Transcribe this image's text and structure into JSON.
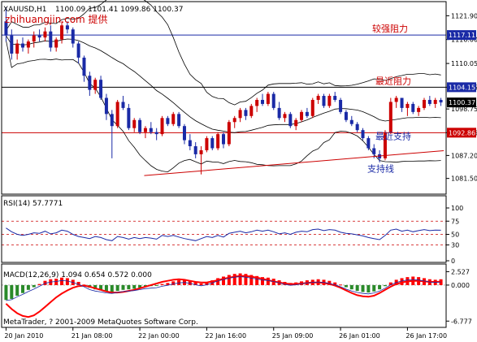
{
  "chart_data": [
    {
      "type": "candlestick",
      "symbol_label": "XAUUSD,H1",
      "ohlc_readout": "1100.09 1101.41 1099.86 1100.37",
      "watermark": "zhihuangjin.com 提供",
      "ylim": [
        1078,
        1125
      ],
      "y_ticks": [
        1121.9,
        1116.0,
        1110.05,
        1104.15,
        1098.75,
        1092.86,
        1087.2,
        1081.5
      ],
      "y_tick_labels": [
        "1121.90",
        "1116.00",
        "1110.05",
        "1104.15",
        "1098.75",
        "1092.86",
        "1087.20",
        "1081.50"
      ],
      "price_tags": [
        {
          "value": 1117.11,
          "label": "1117.11",
          "color": "#1a2aa6",
          "line_color": "#1a2aa6"
        },
        {
          "value": 1104.15,
          "label": "1104.15",
          "color": "#1a2aa6",
          "line_color": "#000000"
        },
        {
          "value": 1100.37,
          "label": "1100.37",
          "color": "#000000",
          "line_color": ""
        },
        {
          "value": 1092.86,
          "label": "1092.86",
          "color": "#cc0000",
          "line_color": "#cc0000"
        }
      ],
      "annotations": [
        {
          "text": "较强阻力",
          "value": 1117.11,
          "color": "#cc0000"
        },
        {
          "text": "最近阻力",
          "value": 1104.15,
          "color": "#cc0000"
        },
        {
          "text": "最近支持",
          "value": 1092.86,
          "color": "#1a2aa6"
        },
        {
          "text": "支持线",
          "value": 1087.0,
          "color": "#1a2aa6"
        }
      ],
      "trendline": {
        "from": [
          0.32,
          1082.2
        ],
        "to": [
          1.0,
          1088.4
        ],
        "color": "#cc0000"
      },
      "up_color": "#cc0000",
      "down_color": "#1a2aa6",
      "candles": [
        [
          1120.5,
          1124.0,
          1115.5,
          1117.0
        ],
        [
          1117.0,
          1118.5,
          1111.0,
          1112.5
        ],
        [
          1112.5,
          1116.0,
          1111.0,
          1115.0
        ],
        [
          1115.0,
          1116.5,
          1113.0,
          1114.0
        ],
        [
          1114.0,
          1116.0,
          1112.5,
          1115.5
        ],
        [
          1115.5,
          1118.0,
          1114.0,
          1117.0
        ],
        [
          1117.0,
          1118.5,
          1115.5,
          1116.5
        ],
        [
          1116.5,
          1119.0,
          1115.5,
          1118.0
        ],
        [
          1118.0,
          1119.5,
          1113.0,
          1114.0
        ],
        [
          1114.0,
          1116.5,
          1113.0,
          1116.0
        ],
        [
          1116.0,
          1120.5,
          1115.0,
          1119.5
        ],
        [
          1119.5,
          1120.5,
          1117.5,
          1118.5
        ],
        [
          1118.5,
          1119.0,
          1114.0,
          1115.0
        ],
        [
          1115.0,
          1115.5,
          1110.0,
          1111.5
        ],
        [
          1111.5,
          1112.0,
          1105.5,
          1107.0
        ],
        [
          1107.0,
          1108.0,
          1102.0,
          1103.5
        ],
        [
          1103.5,
          1106.5,
          1102.5,
          1106.0
        ],
        [
          1106.0,
          1107.0,
          1101.0,
          1101.5
        ],
        [
          1101.5,
          1102.5,
          1096.0,
          1097.5
        ],
        [
          1097.5,
          1098.5,
          1086.5,
          1094.5
        ],
        [
          1094.5,
          1101.0,
          1094.0,
          1100.5
        ],
        [
          1100.5,
          1102.0,
          1098.5,
          1099.0
        ],
        [
          1099.0,
          1100.0,
          1093.5,
          1094.0
        ],
        [
          1094.0,
          1096.5,
          1093.0,
          1096.0
        ],
        [
          1096.0,
          1096.5,
          1092.5,
          1093.0
        ],
        [
          1093.0,
          1094.5,
          1091.5,
          1094.0
        ],
        [
          1094.0,
          1095.5,
          1092.5,
          1093.0
        ],
        [
          1093.0,
          1094.0,
          1091.0,
          1092.5
        ],
        [
          1092.5,
          1097.0,
          1092.0,
          1096.5
        ],
        [
          1096.5,
          1097.0,
          1094.5,
          1095.0
        ],
        [
          1095.0,
          1098.0,
          1094.5,
          1097.5
        ],
        [
          1097.5,
          1098.0,
          1094.0,
          1094.5
        ],
        [
          1094.5,
          1095.0,
          1090.0,
          1091.0
        ],
        [
          1091.0,
          1092.5,
          1088.5,
          1089.5
        ],
        [
          1089.5,
          1090.5,
          1086.5,
          1087.5
        ],
        [
          1087.5,
          1089.5,
          1082.5,
          1088.5
        ],
        [
          1088.5,
          1092.0,
          1088.0,
          1091.5
        ],
        [
          1091.5,
          1092.0,
          1088.5,
          1089.0
        ],
        [
          1089.0,
          1093.0,
          1088.5,
          1092.5
        ],
        [
          1092.5,
          1093.0,
          1089.0,
          1090.0
        ],
        [
          1090.0,
          1096.0,
          1089.5,
          1095.5
        ],
        [
          1095.5,
          1097.0,
          1094.0,
          1096.5
        ],
        [
          1096.5,
          1099.0,
          1095.5,
          1098.5
        ],
        [
          1098.5,
          1099.0,
          1096.0,
          1097.0
        ],
        [
          1097.0,
          1100.0,
          1096.5,
          1099.5
        ],
        [
          1099.5,
          1101.5,
          1098.0,
          1101.0
        ],
        [
          1101.0,
          1102.5,
          1099.5,
          1100.0
        ],
        [
          1100.0,
          1103.0,
          1099.5,
          1102.5
        ],
        [
          1102.5,
          1103.0,
          1098.5,
          1099.0
        ],
        [
          1099.0,
          1100.5,
          1096.0,
          1096.5
        ],
        [
          1096.5,
          1098.0,
          1095.5,
          1097.5
        ],
        [
          1097.5,
          1098.0,
          1094.0,
          1094.5
        ],
        [
          1094.5,
          1096.5,
          1093.5,
          1096.0
        ],
        [
          1096.0,
          1098.5,
          1095.5,
          1098.0
        ],
        [
          1098.0,
          1099.0,
          1096.5,
          1097.0
        ],
        [
          1097.0,
          1101.5,
          1096.5,
          1101.0
        ],
        [
          1101.0,
          1102.5,
          1100.0,
          1102.0
        ],
        [
          1102.0,
          1102.5,
          1099.0,
          1099.5
        ],
        [
          1099.5,
          1102.5,
          1099.0,
          1102.0
        ],
        [
          1102.0,
          1103.0,
          1100.5,
          1101.0
        ],
        [
          1101.0,
          1101.5,
          1097.5,
          1098.0
        ],
        [
          1098.0,
          1098.5,
          1095.5,
          1096.0
        ],
        [
          1096.0,
          1097.0,
          1094.5,
          1095.0
        ],
        [
          1095.0,
          1095.5,
          1093.0,
          1093.5
        ],
        [
          1093.5,
          1094.0,
          1091.0,
          1091.5
        ],
        [
          1091.5,
          1092.0,
          1088.5,
          1089.0
        ],
        [
          1089.0,
          1090.0,
          1086.5,
          1087.5
        ],
        [
          1087.5,
          1088.5,
          1085.5,
          1086.5
        ],
        [
          1086.5,
          1093.5,
          1086.0,
          1093.0
        ],
        [
          1093.0,
          1101.5,
          1092.5,
          1100.5
        ],
        [
          1100.5,
          1102.0,
          1099.0,
          1101.5
        ],
        [
          1101.5,
          1101.5,
          1098.0,
          1099.0
        ],
        [
          1099.0,
          1100.5,
          1097.0,
          1100.0
        ],
        [
          1100.0,
          1100.5,
          1097.5,
          1098.0
        ],
        [
          1098.0,
          1099.5,
          1097.0,
          1099.0
        ],
        [
          1099.0,
          1101.5,
          1098.5,
          1101.0
        ],
        [
          1101.0,
          1102.0,
          1099.5,
          1100.0
        ],
        [
          1100.0,
          1101.5,
          1099.0,
          1101.0
        ],
        [
          1101.0,
          1101.5,
          1099.5,
          1100.37
        ]
      ]
    },
    {
      "type": "line",
      "title": "RSI(14) 57.7771",
      "ylim": [
        0,
        100
      ],
      "y_ticks": [
        100,
        75,
        50,
        30,
        0
      ],
      "y_tick_labels": [
        "100",
        "75",
        "50",
        "30",
        "0"
      ],
      "level_lines": [
        75,
        50,
        30
      ],
      "series": [
        {
          "color": "#1a2aa6",
          "values": [
            62,
            55,
            50,
            48,
            50,
            53,
            52,
            56,
            51,
            53,
            58,
            56,
            50,
            46,
            44,
            42,
            46,
            44,
            40,
            38,
            46,
            44,
            41,
            44,
            42,
            44,
            43,
            41,
            48,
            46,
            48,
            45,
            42,
            40,
            38,
            42,
            46,
            44,
            48,
            45,
            52,
            54,
            56,
            53,
            55,
            58,
            56,
            58,
            55,
            51,
            53,
            50,
            54,
            56,
            55,
            59,
            60,
            57,
            59,
            58,
            54,
            52,
            51,
            49,
            47,
            44,
            42,
            40,
            48,
            58,
            60,
            56,
            58,
            55,
            57,
            59,
            57,
            58,
            57.8
          ]
        }
      ]
    },
    {
      "type": "bar",
      "title": "MACD(12,26,9) 1.094 0.654 0.572 0.000",
      "ylim": [
        -7.5,
        3.2
      ],
      "y_ticks": [
        2.527,
        0.0,
        -6.777
      ],
      "y_tick_labels": [
        "2.527",
        "0.000",
        "-6.777"
      ],
      "values": [
        -2.8,
        -2.6,
        -2.0,
        -1.5,
        -0.9,
        -0.4,
        0.2,
        0.8,
        1.1,
        1.2,
        1.4,
        1.3,
        1.0,
        0.6,
        0.1,
        -0.5,
        -0.8,
        -1.0,
        -1.2,
        -1.3,
        -1.1,
        -0.9,
        -0.8,
        -0.7,
        -0.5,
        -0.3,
        -0.2,
        -0.1,
        0.2,
        0.4,
        0.7,
        0.9,
        1.0,
        0.8,
        0.5,
        0.3,
        0.5,
        0.9,
        1.3,
        1.6,
        1.9,
        2.1,
        2.2,
        2.1,
        1.9,
        1.7,
        1.5,
        1.4,
        1.2,
        0.9,
        0.6,
        0.4,
        0.5,
        0.7,
        0.9,
        1.0,
        1.1,
        1.0,
        0.8,
        0.5,
        0.1,
        -0.4,
        -0.8,
        -1.1,
        -1.3,
        -1.4,
        -1.2,
        -0.8,
        -0.2,
        0.5,
        1.0,
        1.3,
        1.5,
        1.6,
        1.5,
        1.3,
        1.1,
        1.0,
        1.094
      ],
      "signal": [
        -3.5,
        -4.5,
        -5.3,
        -5.8,
        -6.0,
        -5.7,
        -5.0,
        -4.1,
        -3.2,
        -2.3,
        -1.6,
        -1.0,
        -0.5,
        -0.2,
        -0.1,
        -0.3,
        -0.6,
        -0.9,
        -1.2,
        -1.4,
        -1.4,
        -1.3,
        -1.1,
        -0.9,
        -0.6,
        -0.3,
        0.0,
        0.3,
        0.6,
        0.8,
        1.0,
        1.1,
        1.0,
        0.8,
        0.6,
        0.5,
        0.5,
        0.7,
        0.9,
        1.2,
        1.4,
        1.6,
        1.7,
        1.7,
        1.6,
        1.4,
        1.2,
        0.9,
        0.7,
        0.5,
        0.3,
        0.2,
        0.2,
        0.3,
        0.4,
        0.5,
        0.5,
        0.4,
        0.2,
        -0.1,
        -0.5,
        -1.0,
        -1.5,
        -1.9,
        -2.1,
        -2.2,
        -2.0,
        -1.5,
        -0.9,
        -0.3,
        0.2,
        0.5,
        0.7,
        0.8,
        0.8,
        0.7,
        0.6,
        0.6,
        0.654
      ],
      "up_color": "#ff0000",
      "down_color": "#2a8a2a",
      "signal_color": "#ff0000"
    }
  ],
  "x_axis": {
    "tick_labels": [
      "20 Jan 2010",
      "21 Jan 08:00",
      "22 Jan 00:00",
      "22 Jan 16:00",
      "25 Jan 09:00",
      "26 Jan 01:00",
      "26 Jan 17:00"
    ],
    "tick_index": [
      0,
      12,
      24,
      36,
      48,
      60,
      72
    ]
  },
  "footer_text": "MetaTrader, ? 2001-2009 MetaQuotes Software Corp."
}
